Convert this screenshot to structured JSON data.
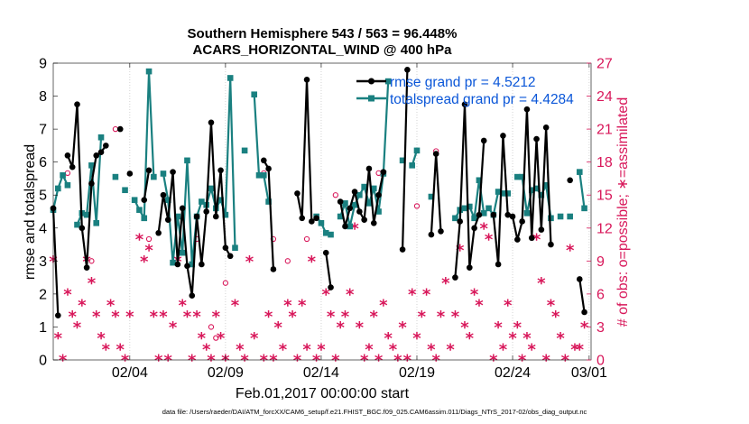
{
  "chart_data": {
    "type": "line",
    "title": "Southern Hemisphere 543 / 563 = 96.448%",
    "subtitle": "ACARS_HORIZONTAL_WIND @ 400 hPa",
    "xlabel": "Feb.01,2017 00:00:00 start",
    "ylabel": "rmse and totalspread",
    "y2label": "# of obs: o=possible; ∗=assimilated",
    "footnote": "data file: /Users/raeder/DAI/ATM_forcXX/CAM6_setup/f.e21.FHIST_BGC.f09_025.CAM6assim.011/Diags_NTrS_2017-02/obs_diag_output.nc",
    "xlim": [
      1,
      29.1
    ],
    "ylim": [
      0,
      9
    ],
    "y2lim": [
      0,
      27
    ],
    "xticks": [
      5,
      10,
      15,
      20,
      25,
      29
    ],
    "xtick_labels": [
      "02/04",
      "02/09",
      "02/14",
      "02/19",
      "02/24",
      "03/01"
    ],
    "yticks": [
      "0",
      "1",
      "2",
      "3",
      "4",
      "5",
      "6",
      "7",
      "8",
      "9"
    ],
    "y2ticks": [
      "0",
      "3",
      "6",
      "9",
      "12",
      "15",
      "18",
      "21",
      "24",
      "27"
    ],
    "colors": {
      "rmse": "#000000",
      "spread": "#1a8080",
      "obs": "#d8175a",
      "legend_text": "#0a56d8"
    },
    "series": [
      {
        "name": "rmse grand pr = 4.5212",
        "axis": "left",
        "x": [
          1.0,
          1.25,
          1.75,
          2.0,
          2.25,
          2.5,
          2.75,
          3.0,
          3.25,
          3.5,
          3.75,
          4.5,
          5.0,
          5.75,
          6.0,
          6.5,
          6.75,
          7.0,
          7.25,
          7.5,
          7.75,
          8.0,
          8.25,
          8.5,
          8.75,
          9.0,
          9.25,
          9.5,
          9.75,
          10.0,
          10.25,
          12.0,
          12.25,
          12.5,
          13.75,
          14.0,
          14.25,
          14.5,
          14.75,
          15.25,
          15.5,
          16.0,
          16.25,
          16.5,
          16.75,
          17.0,
          17.25,
          17.5,
          17.75,
          18.0,
          18.25,
          19.25,
          19.5,
          20.75,
          21.0,
          21.25,
          22.0,
          22.25,
          22.5,
          22.75,
          23.0,
          23.25,
          23.5,
          24.0,
          24.25,
          24.5,
          24.75,
          25.0,
          25.25,
          25.5,
          25.75,
          26.0,
          26.25,
          26.5,
          26.75,
          27.0,
          28.0,
          28.5,
          28.75
        ],
        "y": [
          4.6,
          1.35,
          6.2,
          5.85,
          7.75,
          4.0,
          2.8,
          5.35,
          6.2,
          6.3,
          6.5,
          7.0,
          5.65,
          4.85,
          5.75,
          3.85,
          5.0,
          4.25,
          5.7,
          2.9,
          4.6,
          2.85,
          1.95,
          4.35,
          2.9,
          4.5,
          7.2,
          4.35,
          5.75,
          3.4,
          3.15,
          6.05,
          5.8,
          2.75,
          5.05,
          4.3,
          8.5,
          4.2,
          4.3,
          3.25,
          2.2,
          4.8,
          4.05,
          4.6,
          5.1,
          4.5,
          4.25,
          5.8,
          4.15,
          5.0,
          5.7,
          3.35,
          8.8,
          3.8,
          6.25,
          3.9,
          2.5,
          4.2,
          7.75,
          2.8,
          4.0,
          4.4,
          6.65,
          4.4,
          2.9,
          6.8,
          4.4,
          4.35,
          3.65,
          4.2,
          7.6,
          3.7,
          6.7,
          3.95,
          7.05,
          3.5,
          5.45,
          2.45,
          1.45
        ]
      },
      {
        "name": "totalspread grand pr = 4.4284",
        "axis": "left",
        "x": [
          1.0,
          1.25,
          1.5,
          1.75,
          2.25,
          2.5,
          2.75,
          3.0,
          3.25,
          3.5,
          4.25,
          4.75,
          5.25,
          5.5,
          5.75,
          6.0,
          6.25,
          6.75,
          7.0,
          7.25,
          7.5,
          7.75,
          8.0,
          8.25,
          8.5,
          8.75,
          9.0,
          9.25,
          9.5,
          9.75,
          10.0,
          10.25,
          10.5,
          11.0,
          11.5,
          11.75,
          12.0,
          12.25,
          14.75,
          15.0,
          15.25,
          15.5,
          16.0,
          16.25,
          16.5,
          16.75,
          17.0,
          17.25,
          17.5,
          17.75,
          18.0,
          18.25,
          18.5,
          19.25,
          19.75,
          20.0,
          20.75,
          22.0,
          22.25,
          22.5,
          22.75,
          23.0,
          23.25,
          23.5,
          23.75,
          24.0,
          24.25,
          24.5,
          24.75,
          25.25,
          25.5,
          25.75,
          26.0,
          26.25,
          26.5,
          26.75,
          27.0,
          27.5,
          28.0,
          28.5,
          28.75
        ],
        "y": [
          4.55,
          5.2,
          5.6,
          5.3,
          4.1,
          4.45,
          4.4,
          5.9,
          4.15,
          6.75,
          5.55,
          5.15,
          4.85,
          4.55,
          4.3,
          8.75,
          5.55,
          5.65,
          4.85,
          2.95,
          4.35,
          3.25,
          6.05,
          2.9,
          4.35,
          4.8,
          4.7,
          5.2,
          4.6,
          4.85,
          4.4,
          8.55,
          3.4,
          6.35,
          8.05,
          5.6,
          5.6,
          4.8,
          4.35,
          4.15,
          3.85,
          3.8,
          4.35,
          4.75,
          4.05,
          4.7,
          5.0,
          5.25,
          4.75,
          5.2,
          4.5,
          5.65,
          8.45,
          6.05,
          5.9,
          6.35,
          4.95,
          4.3,
          4.55,
          4.6,
          4.65,
          4.3,
          5.45,
          4.45,
          4.6,
          4.4,
          5.1,
          5.05,
          5.05,
          5.55,
          5.55,
          4.45,
          5.15,
          5.2,
          5.0,
          5.3,
          4.3,
          4.35,
          4.35,
          5.7,
          4.6
        ]
      }
    ],
    "obs_counts": {
      "axis": "right",
      "possible_x": [
        1.75,
        3.0,
        4.25,
        6.0,
        8.5,
        9.5,
        9.25,
        10.0,
        12.0,
        12.5,
        13.25,
        14.25,
        15.75,
        18.0,
        20.0,
        21.0,
        26.5
      ],
      "possible_y": [
        17,
        9,
        21,
        11,
        11,
        2,
        3,
        7,
        17,
        11,
        9,
        11,
        15,
        17,
        14,
        19,
        15
      ],
      "assimilated_x": [
        1.0,
        1.25,
        1.5,
        1.75,
        2.0,
        2.25,
        2.5,
        2.75,
        3.0,
        3.25,
        3.5,
        3.75,
        4.0,
        4.25,
        4.5,
        4.75,
        5.0,
        5.5,
        5.75,
        6.0,
        6.25,
        6.5,
        6.75,
        7.0,
        7.25,
        7.5,
        7.75,
        8.0,
        8.25,
        8.5,
        8.75,
        9.0,
        9.25,
        9.5,
        9.75,
        10.0,
        10.5,
        10.75,
        11.0,
        11.25,
        11.5,
        12.0,
        12.25,
        12.5,
        12.75,
        13.0,
        13.25,
        13.5,
        13.75,
        14.0,
        14.25,
        14.5,
        14.75,
        15.0,
        15.25,
        15.5,
        15.75,
        16.0,
        16.25,
        16.5,
        16.75,
        17.0,
        17.25,
        17.5,
        17.75,
        18.0,
        18.25,
        18.5,
        18.75,
        19.0,
        19.25,
        19.5,
        19.75,
        20.0,
        20.25,
        20.5,
        20.75,
        21.0,
        21.25,
        21.5,
        21.75,
        22.0,
        22.25,
        22.5,
        22.75,
        23.0,
        23.25,
        23.5,
        23.75,
        24.0,
        24.25,
        24.5,
        24.75,
        25.0,
        25.25,
        25.5,
        25.75,
        26.0,
        26.25,
        26.5,
        26.75,
        27.0,
        27.25,
        27.5,
        27.75,
        28.0,
        28.25,
        28.5,
        28.75
      ],
      "assimilated_y": [
        9,
        2,
        0,
        6,
        4,
        3,
        5,
        9,
        7,
        4,
        2,
        1,
        5,
        4,
        1,
        0,
        4,
        11,
        9,
        10,
        4,
        0,
        4,
        0,
        3,
        9,
        5,
        4,
        0,
        4,
        2,
        1,
        0,
        4,
        2,
        0,
        5,
        1,
        0,
        9,
        2,
        0,
        4,
        0,
        3,
        1,
        5,
        4,
        0,
        5,
        1,
        9,
        0,
        1,
        6,
        4,
        0,
        3,
        4,
        6,
        12,
        3,
        0,
        1,
        4,
        0,
        5,
        2,
        1,
        0,
        3,
        0,
        6,
        2,
        4,
        6,
        1,
        0,
        4,
        7,
        1,
        4,
        10,
        3,
        2,
        6,
        5,
        12,
        11,
        0,
        3,
        1,
        5,
        2,
        3,
        0,
        2,
        1,
        11,
        7,
        0,
        5,
        4,
        2,
        0,
        10,
        1,
        1,
        3
      ]
    }
  }
}
